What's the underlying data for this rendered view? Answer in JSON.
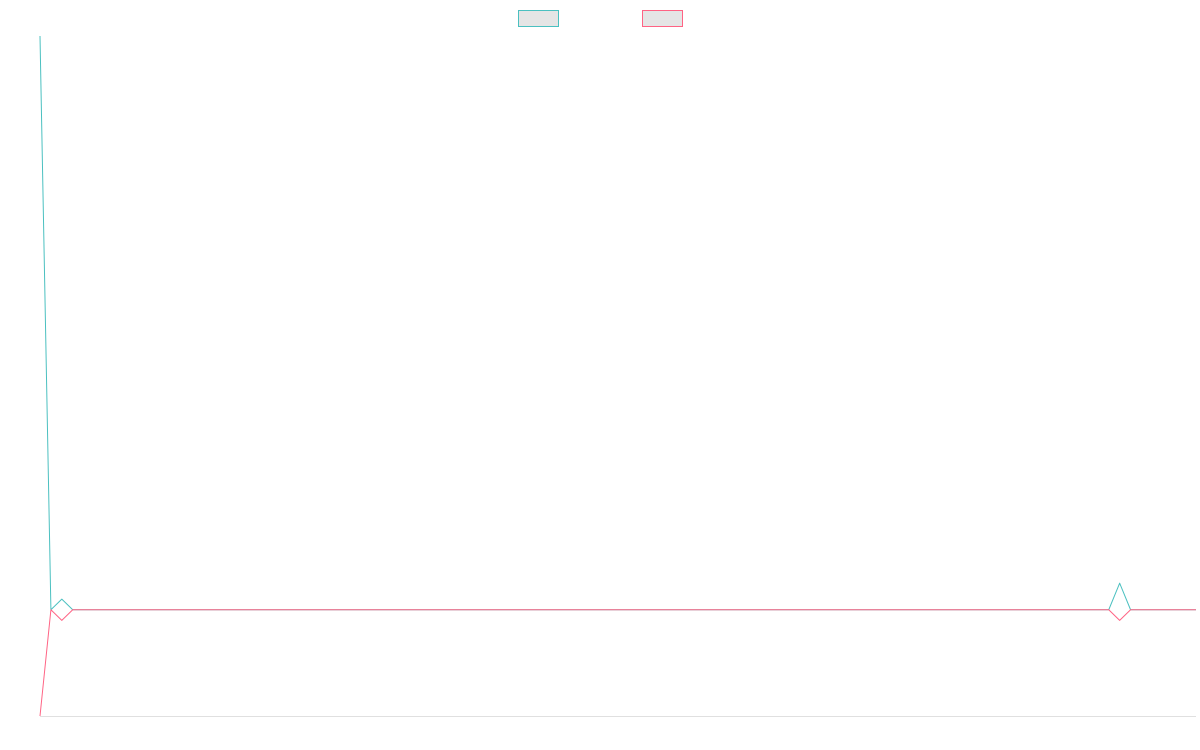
{
  "chart_data": {
    "type": "line",
    "title": "",
    "xlabel": "",
    "ylabel": "",
    "grid": false,
    "legend_position": "top-center",
    "x": [
      0,
      1,
      2,
      3,
      98,
      99,
      100,
      101,
      106
    ],
    "xlim": [
      0,
      106
    ],
    "ylim": [
      -100,
      540
    ],
    "series": [
      {
        "color": "#4bc0c0",
        "fill": "#e5e5e5",
        "values": [
          540,
          0,
          10,
          0,
          0,
          25,
          0,
          0,
          0
        ]
      },
      {
        "color": "#ff6384",
        "fill": "#e5e5e5",
        "values": [
          -100,
          0,
          -10,
          0,
          0,
          -10,
          0,
          0,
          0
        ]
      }
    ]
  }
}
